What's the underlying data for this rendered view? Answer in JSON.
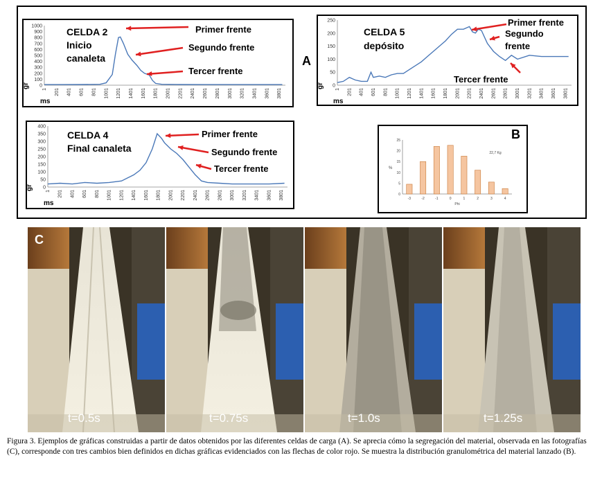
{
  "panel_labels": {
    "a": "A",
    "b": "B",
    "c": "C"
  },
  "colors": {
    "series": "#4a78b8",
    "arrow": "#e02020",
    "bar_fill": "#f5c5a0",
    "bar_stroke": "#c87a3a"
  },
  "chart_data": [
    {
      "id": "celda2",
      "type": "line",
      "title_lines": [
        "CELDA 2",
        "Inicio",
        "canaleta"
      ],
      "ylabel": "gr",
      "xlabel": "ms",
      "ylim": [
        0,
        1000
      ],
      "yticks": [
        "1000",
        "900",
        "800",
        "700",
        "600",
        "500",
        "400",
        "300",
        "200",
        "100",
        "0"
      ],
      "xticks": [
        "1",
        "201",
        "401",
        "601",
        "801",
        "1001",
        "1201",
        "1401",
        "1601",
        "1801",
        "2001",
        "2201",
        "2401",
        "2601",
        "2801",
        "3001",
        "3201",
        "3401",
        "3601",
        "3801"
      ],
      "series": [
        {
          "x": [
            1,
            300,
            600,
            900,
            1000,
            1100,
            1150,
            1200,
            1230,
            1280,
            1350,
            1420,
            1500,
            1560,
            1620,
            1700,
            1750,
            1800,
            1900,
            2200,
            2600,
            3000,
            3400,
            3850
          ],
          "y": [
            10,
            10,
            12,
            15,
            40,
            180,
            520,
            800,
            810,
            700,
            520,
            420,
            330,
            250,
            200,
            170,
            80,
            30,
            15,
            12,
            10,
            10,
            10,
            10
          ]
        }
      ],
      "annotations": [
        "Primer frente",
        "Segundo frente",
        "Tercer frente"
      ]
    },
    {
      "id": "celda5",
      "type": "line",
      "title_lines": [
        "CELDA 5",
        "depósito"
      ],
      "ylabel": "gr",
      "xlabel": "ms",
      "ylim": [
        0,
        250
      ],
      "yticks": [
        "250",
        "200",
        "150",
        "100",
        "50",
        "0"
      ],
      "xticks": [
        "1",
        "201",
        "401",
        "601",
        "801",
        "1001",
        "1201",
        "1401",
        "1601",
        "1801",
        "2001",
        "2201",
        "2401",
        "2601",
        "2801",
        "3001",
        "3201",
        "3401",
        "3601",
        "3801"
      ],
      "series": [
        {
          "x": [
            1,
            100,
            200,
            300,
            400,
            500,
            560,
            600,
            700,
            800,
            900,
            1000,
            1100,
            1200,
            1300,
            1400,
            1500,
            1600,
            1700,
            1800,
            1900,
            2000,
            2100,
            2200,
            2250,
            2300,
            2350,
            2400,
            2450,
            2500,
            2600,
            2700,
            2800,
            2900,
            3000,
            3200,
            3400,
            3600,
            3850
          ],
          "y": [
            10,
            15,
            30,
            20,
            15,
            15,
            50,
            30,
            35,
            30,
            40,
            45,
            45,
            60,
            75,
            90,
            110,
            130,
            150,
            170,
            195,
            215,
            215,
            225,
            205,
            200,
            215,
            210,
            185,
            160,
            130,
            110,
            95,
            115,
            100,
            115,
            110,
            110,
            110
          ]
        }
      ],
      "annotations": [
        "Primer frente",
        "Segundo",
        "frente",
        "Tercer frente"
      ]
    },
    {
      "id": "celda4",
      "type": "line",
      "title_lines": [
        "CELDA 4",
        "Final canaleta"
      ],
      "ylabel": "gr",
      "xlabel": "ms",
      "ylim": [
        0,
        400
      ],
      "yticks": [
        "400",
        "350",
        "300",
        "250",
        "200",
        "150",
        "100",
        "50",
        "0"
      ],
      "xticks": [
        "1",
        "201",
        "401",
        "601",
        "801",
        "1001",
        "1201",
        "1401",
        "1601",
        "1801",
        "2001",
        "2201",
        "2401",
        "2601",
        "2801",
        "3001",
        "3201",
        "3401",
        "3601",
        "3801"
      ],
      "series": [
        {
          "x": [
            1,
            200,
            400,
            600,
            800,
            1000,
            1200,
            1300,
            1400,
            1500,
            1600,
            1700,
            1780,
            1850,
            1900,
            1950,
            2000,
            2100,
            2200,
            2300,
            2400,
            2500,
            2600,
            2800,
            3000,
            3200,
            3400,
            3600,
            3850
          ],
          "y": [
            20,
            25,
            20,
            30,
            25,
            30,
            40,
            60,
            80,
            110,
            160,
            250,
            350,
            320,
            290,
            270,
            250,
            220,
            180,
            130,
            80,
            40,
            30,
            25,
            20,
            20,
            20,
            20,
            25
          ]
        }
      ],
      "annotations": [
        "Primer frente",
        "Segundo frente",
        "Tercer frente"
      ]
    },
    {
      "id": "granulometria",
      "type": "bar",
      "categories": [
        "-3",
        "-2",
        "-1",
        "0",
        "1",
        "2",
        "3",
        "4"
      ],
      "values": [
        4.5,
        15,
        22,
        22.5,
        17.5,
        11,
        5.5,
        2.5
      ],
      "ylim": [
        0,
        25
      ],
      "yticks": [
        "25",
        "20",
        "15",
        "10",
        "5",
        "0"
      ],
      "ylabel": "%",
      "xlabel": "Phi",
      "annotation": "22,7 Kg"
    }
  ],
  "photos": [
    {
      "time": "t=0.5s"
    },
    {
      "time": "t=0.75s"
    },
    {
      "time": "t=1.0s"
    },
    {
      "time": "t=1.25s"
    }
  ],
  "caption": "Figura 3. Ejemplos de gráficas construidas a partir de datos obtenidos por las diferentes celdas de carga (A). Se aprecia cómo la segregación del material, observada en las fotografías (C), corresponde con tres cambios bien definidos en dichas gráficas evidenciados con las flechas de color rojo. Se muestra la distribución granulométrica del material lanzado (B)."
}
